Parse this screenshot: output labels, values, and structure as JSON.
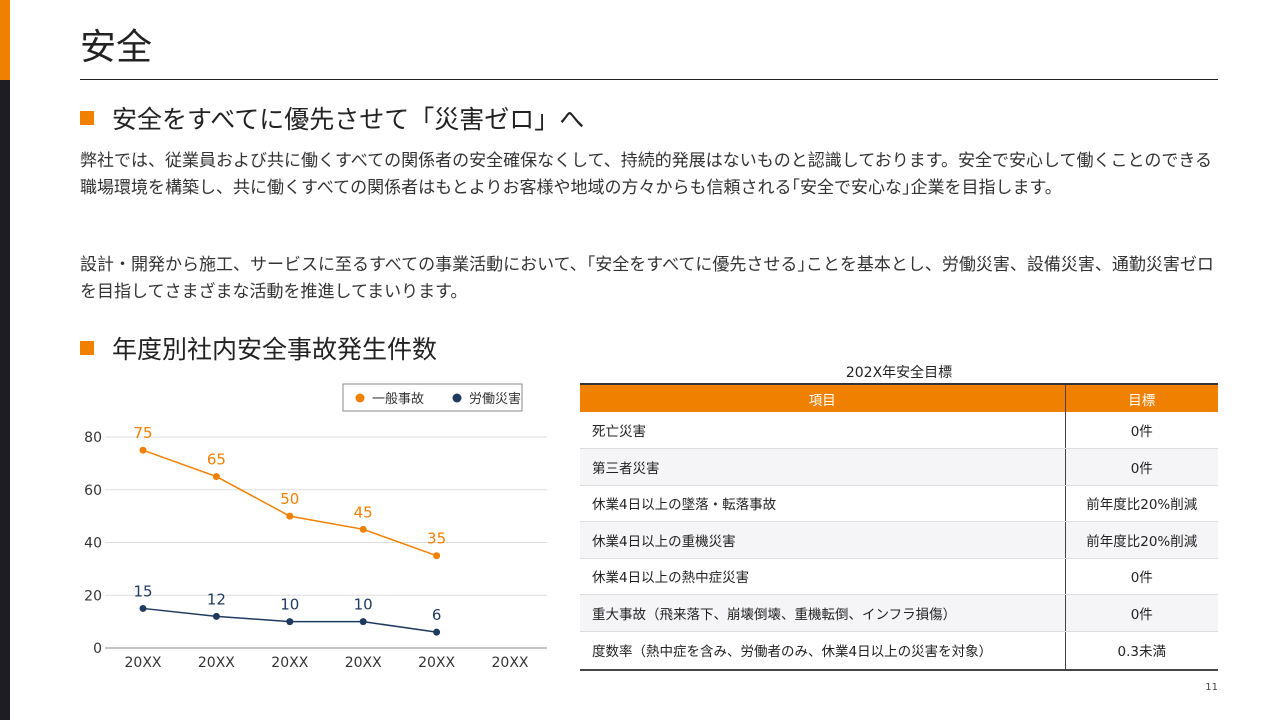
{
  "title": "安全",
  "section1": {
    "heading": "安全をすべてに優先させて「災害ゼロ」へ",
    "para1": "弊社では、従業員および共に働くすべての関係者の安全確保なくして、持続的発展はないものと認識しております。安全で安心して働くことのできる職場環境を構築し、共に働くすべての関係者はもとよりお客様や地域の方々からも信頼される｢安全で安心な｣企業を目指します。",
    "para2": "設計・開発から施工、サービスに至るすべての事業活動において、｢安全をすべてに優先させる｣ことを基本とし、労働災害、設備災害、通勤災害ゼロを目指してさまざまな活動を推進してまいります。"
  },
  "section2": {
    "heading": "年度別社内安全事故発生件数"
  },
  "chart_data": {
    "type": "line",
    "categories": [
      "20XX",
      "20XX",
      "20XX",
      "20XX",
      "20XX",
      "20XX"
    ],
    "series": [
      {
        "name": "一般事故",
        "color": "#f08000",
        "values": [
          75,
          65,
          50,
          45,
          35,
          null
        ]
      },
      {
        "name": "労働災害",
        "color": "#1f3a5f",
        "values": [
          15,
          12,
          10,
          10,
          6,
          null
        ]
      }
    ],
    "ylim": [
      0,
      80
    ],
    "yticks": [
      0,
      20,
      40,
      60,
      80
    ],
    "legend": "top-right",
    "grid": true
  },
  "table": {
    "title": "202X年安全目標",
    "headers": [
      "項目",
      "目標"
    ],
    "rows": [
      [
        "死亡災害",
        "0件"
      ],
      [
        "第三者災害",
        "0件"
      ],
      [
        "休業4日以上の墜落・転落事故",
        "前年度比20%削減"
      ],
      [
        "休業4日以上の重機災害",
        "前年度比20%削減"
      ],
      [
        "休業4日以上の熱中症災害",
        "0件"
      ],
      [
        "重大事故（飛来落下、崩壊倒壊、重機転倒、インフラ損傷）",
        "0件"
      ],
      [
        "度数率（熱中症を含み、労働者のみ、休業4日以上の災害を対象）",
        "0.3未満"
      ]
    ]
  },
  "page_number": "11"
}
